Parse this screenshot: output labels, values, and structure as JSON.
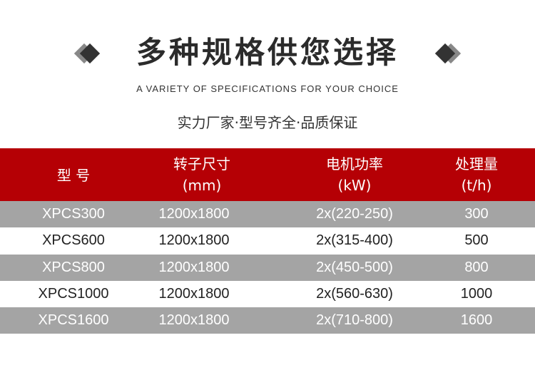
{
  "title": "多种规格供您选择",
  "subtitle_en": "A VARIETY OF SPECIFICATIONS FOR YOUR CHOICE",
  "subtitle_cn": "实力厂家·型号齐全·品质保证",
  "colors": {
    "header_bg": "#b50005",
    "row_gray": "#a4a4a4",
    "diamond_dark": "#333333",
    "diamond_gray": "#888888"
  },
  "table": {
    "headers": [
      {
        "label": "型 号",
        "unit": ""
      },
      {
        "label": "转子尺寸",
        "unit": "(mm)"
      },
      {
        "label": "电机功率",
        "unit": "(kW)"
      },
      {
        "label": "处理量",
        "unit": "(t/h)"
      }
    ],
    "rows": [
      [
        "XPCS300",
        "1200x1800",
        "2x(220-250)",
        "300"
      ],
      [
        "XPCS600",
        "1200x1800",
        "2x(315-400)",
        "500"
      ],
      [
        "XPCS800",
        "1200x1800",
        "2x(450-500)",
        "800"
      ],
      [
        "XPCS1000",
        "1200x1800",
        "2x(560-630)",
        "1000"
      ],
      [
        "XPCS1600",
        "1200x1800",
        "2x(710-800)",
        "1600"
      ]
    ]
  }
}
